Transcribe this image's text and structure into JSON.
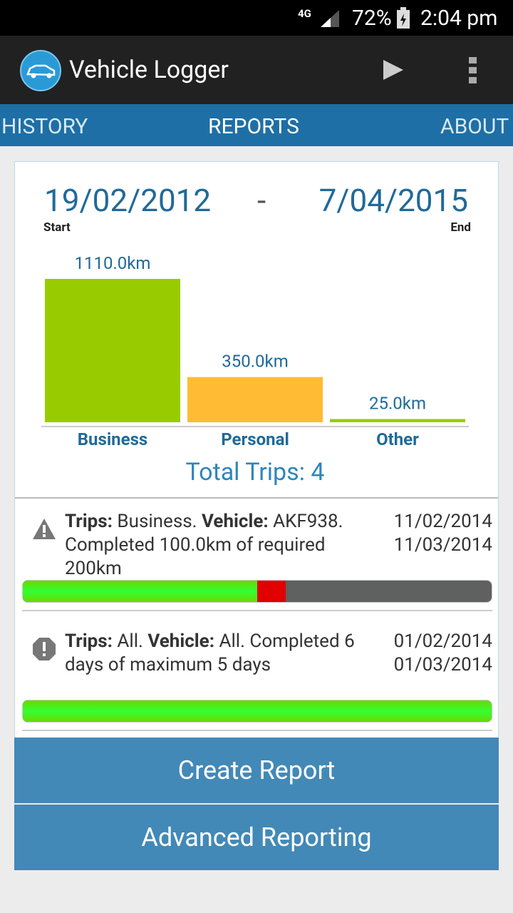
{
  "status_bar": {
    "network": "4G",
    "battery": "72%",
    "time": "2:04 pm"
  },
  "app_bar": {
    "title": "Vehicle Logger"
  },
  "tabs": [
    "HISTORY",
    "REPORTS",
    "ABOUT"
  ],
  "date_range": {
    "start": "19/02/2012",
    "separator": "-",
    "end": "7/04/2015",
    "start_label": "Start",
    "end_label": "End"
  },
  "chart_data": {
    "type": "bar",
    "categories": [
      "Business",
      "Personal",
      "Other"
    ],
    "values": [
      1110,
      350,
      25
    ],
    "value_labels": [
      "1110.0km",
      "350.0km",
      "25.0km"
    ],
    "colors": [
      "#99cc00",
      "#ffbb33",
      "#99cc00"
    ]
  },
  "total_trips": "Total Trips: 4",
  "alerts": [
    {
      "icon": "warning",
      "segments": [
        {
          "text": "Trips:",
          "bold": true
        },
        {
          "text": "Business."
        },
        {
          "text": "Vehicle:",
          "bold": true
        },
        {
          "text": "AKF938. Completed 100.0km of required 200km"
        }
      ],
      "dates": [
        "11/02/2014",
        "11/03/2014"
      ],
      "progress": {
        "value": 100,
        "max": 200
      }
    },
    {
      "icon": "error",
      "segments": [
        {
          "text": "Trips:",
          "bold": true
        },
        {
          "text": "All."
        },
        {
          "text": "Vehicle:",
          "bold": true
        },
        {
          "text": "All. Completed 6 days of maximum 5 days"
        }
      ],
      "dates": [
        "01/02/2014",
        "01/03/2014"
      ],
      "progress": {
        "value": 6,
        "max": 5
      }
    }
  ],
  "buttons": [
    "Create Report",
    "Advanced Reporting"
  ]
}
